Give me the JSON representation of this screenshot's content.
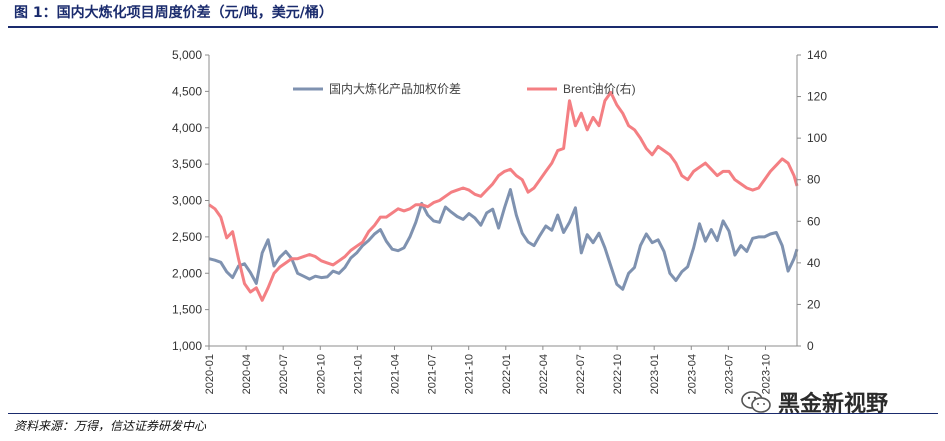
{
  "figure": {
    "title": "图 1：国内大炼化项目周度价差（元/吨，美元/桶）",
    "source": "资料来源：万得，信达证券研发中心",
    "watermark": "黑金新视野"
  },
  "colors": {
    "price_spread": "#7f92b0",
    "brent": "#f47f83",
    "title": "#1a2b6d"
  },
  "chart_data": {
    "type": "line",
    "title": "",
    "legend_position": "top-center",
    "grid": false,
    "x_ticks": [
      "2020-01",
      "2020-04",
      "2020-07",
      "2020-10",
      "2021-01",
      "2021-04",
      "2021-07",
      "2021-10",
      "2022-01",
      "2022-04",
      "2022-07",
      "2022-10",
      "2023-01",
      "2023-04",
      "2023-07",
      "2023-10"
    ],
    "x_range": [
      0,
      199
    ],
    "left_axis": {
      "ylim": [
        1000,
        5000
      ],
      "ticks": [
        "1,000",
        "1,500",
        "2,000",
        "2,500",
        "3,000",
        "3,500",
        "4,000",
        "4,500",
        "5,000"
      ]
    },
    "right_axis": {
      "ylim": [
        0,
        140
      ],
      "ticks": [
        "0",
        "20",
        "40",
        "60",
        "80",
        "100",
        "120",
        "140"
      ]
    },
    "series": [
      {
        "name": "国内大炼化产品加权价差",
        "axis": "left",
        "points": [
          [
            0,
            2200
          ],
          [
            2,
            2180
          ],
          [
            4,
            2150
          ],
          [
            6,
            2020
          ],
          [
            8,
            1940
          ],
          [
            10,
            2100
          ],
          [
            12,
            2130
          ],
          [
            14,
            2010
          ],
          [
            16,
            1860
          ],
          [
            18,
            2280
          ],
          [
            20,
            2460
          ],
          [
            22,
            2100
          ],
          [
            24,
            2220
          ],
          [
            26,
            2300
          ],
          [
            28,
            2200
          ],
          [
            30,
            2000
          ],
          [
            32,
            1960
          ],
          [
            34,
            1920
          ],
          [
            36,
            1960
          ],
          [
            38,
            1940
          ],
          [
            40,
            1950
          ],
          [
            42,
            2030
          ],
          [
            44,
            2000
          ],
          [
            46,
            2080
          ],
          [
            48,
            2210
          ],
          [
            50,
            2280
          ],
          [
            52,
            2380
          ],
          [
            54,
            2450
          ],
          [
            56,
            2540
          ],
          [
            58,
            2600
          ],
          [
            60,
            2440
          ],
          [
            62,
            2330
          ],
          [
            64,
            2310
          ],
          [
            66,
            2350
          ],
          [
            68,
            2500
          ],
          [
            70,
            2700
          ],
          [
            72,
            2960
          ],
          [
            74,
            2800
          ],
          [
            76,
            2720
          ],
          [
            78,
            2700
          ],
          [
            80,
            2910
          ],
          [
            82,
            2840
          ],
          [
            84,
            2780
          ],
          [
            86,
            2740
          ],
          [
            88,
            2820
          ],
          [
            90,
            2760
          ],
          [
            92,
            2660
          ],
          [
            94,
            2830
          ],
          [
            96,
            2880
          ],
          [
            98,
            2620
          ],
          [
            100,
            2900
          ],
          [
            102,
            3150
          ],
          [
            104,
            2800
          ],
          [
            106,
            2550
          ],
          [
            108,
            2430
          ],
          [
            110,
            2380
          ],
          [
            112,
            2520
          ],
          [
            114,
            2650
          ],
          [
            116,
            2590
          ],
          [
            118,
            2800
          ],
          [
            120,
            2560
          ],
          [
            122,
            2700
          ],
          [
            124,
            2900
          ],
          [
            126,
            2280
          ],
          [
            128,
            2530
          ],
          [
            130,
            2420
          ],
          [
            132,
            2550
          ],
          [
            134,
            2350
          ],
          [
            136,
            2100
          ],
          [
            138,
            1850
          ],
          [
            140,
            1780
          ],
          [
            142,
            2000
          ],
          [
            144,
            2080
          ],
          [
            146,
            2380
          ],
          [
            148,
            2540
          ],
          [
            150,
            2420
          ],
          [
            152,
            2460
          ],
          [
            154,
            2300
          ],
          [
            156,
            2000
          ],
          [
            158,
            1900
          ],
          [
            160,
            2020
          ],
          [
            162,
            2090
          ],
          [
            164,
            2350
          ],
          [
            166,
            2680
          ],
          [
            168,
            2440
          ],
          [
            170,
            2600
          ],
          [
            172,
            2450
          ],
          [
            174,
            2720
          ],
          [
            176,
            2580
          ],
          [
            178,
            2250
          ],
          [
            180,
            2380
          ],
          [
            182,
            2300
          ],
          [
            184,
            2480
          ],
          [
            186,
            2500
          ],
          [
            188,
            2500
          ],
          [
            190,
            2540
          ],
          [
            192,
            2560
          ],
          [
            194,
            2380
          ],
          [
            196,
            2030
          ],
          [
            198,
            2200
          ],
          [
            199,
            2330
          ]
        ]
      },
      {
        "name": "Brent油价(右)",
        "axis": "right",
        "points": [
          [
            0,
            68
          ],
          [
            2,
            66
          ],
          [
            4,
            62
          ],
          [
            6,
            52
          ],
          [
            8,
            55
          ],
          [
            10,
            42
          ],
          [
            12,
            30
          ],
          [
            14,
            26
          ],
          [
            16,
            28
          ],
          [
            18,
            22
          ],
          [
            20,
            28
          ],
          [
            22,
            35
          ],
          [
            24,
            38
          ],
          [
            26,
            40
          ],
          [
            28,
            42
          ],
          [
            30,
            42
          ],
          [
            32,
            43
          ],
          [
            34,
            44
          ],
          [
            36,
            43
          ],
          [
            38,
            41
          ],
          [
            40,
            40
          ],
          [
            42,
            39
          ],
          [
            44,
            41
          ],
          [
            46,
            43
          ],
          [
            48,
            46
          ],
          [
            50,
            48
          ],
          [
            52,
            50
          ],
          [
            54,
            55
          ],
          [
            56,
            58
          ],
          [
            58,
            62
          ],
          [
            60,
            62
          ],
          [
            62,
            64
          ],
          [
            64,
            66
          ],
          [
            66,
            65
          ],
          [
            68,
            66
          ],
          [
            70,
            68
          ],
          [
            72,
            68
          ],
          [
            74,
            67
          ],
          [
            76,
            69
          ],
          [
            78,
            70
          ],
          [
            80,
            72
          ],
          [
            82,
            74
          ],
          [
            84,
            75
          ],
          [
            86,
            76
          ],
          [
            88,
            75
          ],
          [
            90,
            73
          ],
          [
            92,
            72
          ],
          [
            94,
            75
          ],
          [
            96,
            78
          ],
          [
            98,
            82
          ],
          [
            100,
            84
          ],
          [
            102,
            85
          ],
          [
            104,
            82
          ],
          [
            106,
            80
          ],
          [
            108,
            74
          ],
          [
            110,
            76
          ],
          [
            112,
            80
          ],
          [
            114,
            84
          ],
          [
            116,
            88
          ],
          [
            118,
            94
          ],
          [
            120,
            95
          ],
          [
            122,
            118
          ],
          [
            124,
            106
          ],
          [
            126,
            112
          ],
          [
            128,
            104
          ],
          [
            130,
            110
          ],
          [
            132,
            106
          ],
          [
            134,
            118
          ],
          [
            136,
            122
          ],
          [
            138,
            116
          ],
          [
            140,
            112
          ],
          [
            142,
            106
          ],
          [
            144,
            104
          ],
          [
            146,
            100
          ],
          [
            148,
            95
          ],
          [
            150,
            92
          ],
          [
            152,
            96
          ],
          [
            154,
            94
          ],
          [
            156,
            92
          ],
          [
            158,
            88
          ],
          [
            160,
            82
          ],
          [
            162,
            80
          ],
          [
            164,
            84
          ],
          [
            166,
            86
          ],
          [
            168,
            88
          ],
          [
            170,
            85
          ],
          [
            172,
            82
          ],
          [
            174,
            84
          ],
          [
            176,
            84
          ],
          [
            178,
            80
          ],
          [
            180,
            78
          ],
          [
            182,
            76
          ],
          [
            184,
            75
          ],
          [
            186,
            76
          ],
          [
            188,
            80
          ],
          [
            190,
            84
          ],
          [
            192,
            87
          ],
          [
            194,
            90
          ],
          [
            196,
            88
          ],
          [
            198,
            82
          ],
          [
            199,
            77
          ]
        ]
      }
    ]
  }
}
